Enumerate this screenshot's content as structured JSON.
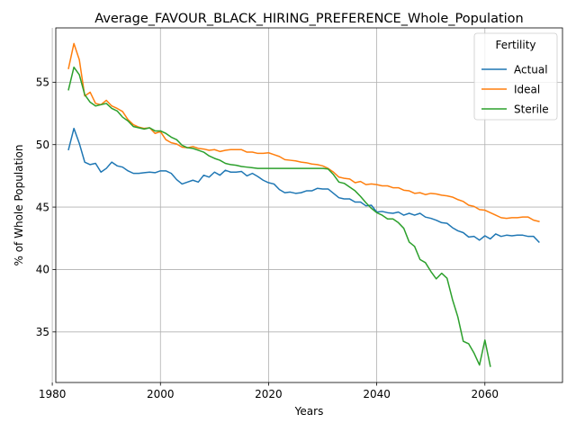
{
  "chart_data": {
    "type": "line",
    "title": "Average_FAVOUR_BLACK_HIRING_PREFERENCE_Whole_Population",
    "xlabel": "Years",
    "ylabel": "% of Whole Population",
    "xlim": [
      1980.65,
      2074.35
    ],
    "ylim": [
      30.95,
      59.35
    ],
    "xticks": [
      1980,
      2000,
      2020,
      2040,
      2060
    ],
    "yticks": [
      35,
      40,
      45,
      50,
      55
    ],
    "grid": true,
    "legend": {
      "title": "Fertility",
      "position": "top-right"
    },
    "series": [
      {
        "name": "Actual",
        "color": "#1f77b4",
        "x": [
          1983,
          1984,
          1985,
          1986,
          1987,
          1988,
          1989,
          1990,
          1991,
          1992,
          1993,
          1994,
          1995,
          1996,
          1997,
          1998,
          1999,
          2000,
          2001,
          2002,
          2003,
          2004,
          2005,
          2006,
          2007,
          2008,
          2009,
          2010,
          2011,
          2012,
          2013,
          2014,
          2015,
          2016,
          2017,
          2018,
          2019,
          2020,
          2021,
          2022,
          2023,
          2024,
          2025,
          2026,
          2027,
          2028,
          2029,
          2030,
          2031,
          2032,
          2033,
          2034,
          2035,
          2036,
          2037,
          2038,
          2039,
          2040,
          2041,
          2042,
          2043,
          2044,
          2045,
          2046,
          2047,
          2048,
          2049,
          2050,
          2051,
          2052,
          2053,
          2054,
          2055,
          2056,
          2057,
          2058,
          2059,
          2060,
          2061,
          2062,
          2063,
          2064,
          2065,
          2066,
          2067,
          2068,
          2069,
          2070
        ],
        "values": [
          49.6,
          51.3,
          50.1,
          48.6,
          48.4,
          48.5,
          47.8,
          48.1,
          48.6,
          48.3,
          48.2,
          47.9,
          47.7,
          47.7,
          47.75,
          47.8,
          47.75,
          47.9,
          47.9,
          47.7,
          47.2,
          46.85,
          47.0,
          47.15,
          47.0,
          47.55,
          47.4,
          47.8,
          47.55,
          47.95,
          47.8,
          47.8,
          47.85,
          47.5,
          47.7,
          47.45,
          47.15,
          46.95,
          46.85,
          46.4,
          46.15,
          46.2,
          46.1,
          46.15,
          46.3,
          46.3,
          46.5,
          46.45,
          46.45,
          46.1,
          45.75,
          45.65,
          45.65,
          45.4,
          45.4,
          45.1,
          45.15,
          44.6,
          44.65,
          44.55,
          44.5,
          44.6,
          44.35,
          44.5,
          44.35,
          44.5,
          44.2,
          44.1,
          43.95,
          43.75,
          43.7,
          43.35,
          43.1,
          42.95,
          42.6,
          42.65,
          42.35,
          42.7,
          42.45,
          42.85,
          42.65,
          42.75,
          42.7,
          42.75,
          42.75,
          42.65,
          42.65,
          42.2
        ]
      },
      {
        "name": "Ideal",
        "color": "#ff7f0e",
        "x": [
          1983,
          1984,
          1985,
          1986,
          1987,
          1988,
          1989,
          1990,
          1991,
          1992,
          1993,
          1994,
          1995,
          1996,
          1997,
          1998,
          1999,
          2000,
          2001,
          2002,
          2003,
          2004,
          2005,
          2006,
          2007,
          2008,
          2009,
          2010,
          2011,
          2012,
          2013,
          2014,
          2015,
          2016,
          2017,
          2018,
          2019,
          2020,
          2021,
          2022,
          2023,
          2024,
          2025,
          2026,
          2027,
          2028,
          2029,
          2030,
          2031,
          2032,
          2033,
          2034,
          2035,
          2036,
          2037,
          2038,
          2039,
          2040,
          2041,
          2042,
          2043,
          2044,
          2045,
          2046,
          2047,
          2048,
          2049,
          2050,
          2051,
          2052,
          2053,
          2054,
          2055,
          2056,
          2057,
          2058,
          2059,
          2060,
          2061,
          2062,
          2063,
          2064,
          2065,
          2066,
          2067,
          2068,
          2069,
          2070
        ],
        "values": [
          56.1,
          58.1,
          56.8,
          53.9,
          54.2,
          53.3,
          53.2,
          53.55,
          53.1,
          52.9,
          52.65,
          52.0,
          51.6,
          51.4,
          51.3,
          51.35,
          50.9,
          51.05,
          50.4,
          50.15,
          50.05,
          49.8,
          49.75,
          49.85,
          49.7,
          49.65,
          49.55,
          49.6,
          49.45,
          49.55,
          49.6,
          49.6,
          49.6,
          49.4,
          49.4,
          49.3,
          49.3,
          49.35,
          49.2,
          49.05,
          48.8,
          48.75,
          48.7,
          48.6,
          48.55,
          48.45,
          48.4,
          48.3,
          48.1,
          47.8,
          47.4,
          47.3,
          47.25,
          46.95,
          47.05,
          46.8,
          46.85,
          46.8,
          46.7,
          46.7,
          46.55,
          46.55,
          46.35,
          46.3,
          46.1,
          46.15,
          46.0,
          46.1,
          46.05,
          45.95,
          45.9,
          45.8,
          45.6,
          45.45,
          45.15,
          45.05,
          44.8,
          44.75,
          44.55,
          44.35,
          44.15,
          44.1,
          44.15,
          44.15,
          44.2,
          44.2,
          43.95,
          43.85
        ]
      },
      {
        "name": "Sterile",
        "color": "#2ca02c",
        "x": [
          1983,
          1984,
          1985,
          1986,
          1987,
          1988,
          1989,
          1990,
          1991,
          1992,
          1993,
          1994,
          1995,
          1996,
          1997,
          1998,
          1999,
          2000,
          2001,
          2002,
          2003,
          2004,
          2005,
          2006,
          2007,
          2008,
          2009,
          2010,
          2011,
          2012,
          2013,
          2014,
          2015,
          2016,
          2017,
          2018,
          2019,
          2020,
          2021,
          2022,
          2023,
          2024,
          2025,
          2026,
          2027,
          2028,
          2029,
          2030,
          2031,
          2032,
          2033,
          2034,
          2035,
          2036,
          2037,
          2038,
          2039,
          2040,
          2041,
          2042,
          2043,
          2044,
          2045,
          2046,
          2047,
          2048,
          2049,
          2050,
          2051,
          2052,
          2053,
          2054,
          2055,
          2056,
          2057,
          2058,
          2059,
          2060,
          2061,
          2062
        ],
        "values": [
          54.4,
          56.2,
          55.6,
          54.0,
          53.4,
          53.1,
          53.2,
          53.3,
          52.9,
          52.7,
          52.2,
          51.9,
          51.45,
          51.35,
          51.25,
          51.35,
          51.1,
          51.1,
          50.9,
          50.6,
          50.4,
          49.95,
          49.75,
          49.7,
          49.55,
          49.4,
          49.1,
          48.9,
          48.75,
          48.5,
          48.4,
          48.35,
          48.25,
          48.2,
          48.15,
          48.1,
          48.1,
          48.1,
          48.1,
          48.1,
          48.1,
          48.1,
          48.1,
          48.1,
          48.1,
          48.1,
          48.1,
          48.1,
          48.05,
          47.6,
          47.0,
          46.9,
          46.6,
          46.3,
          45.85,
          45.35,
          44.9,
          44.55,
          44.35,
          44.05,
          44.05,
          43.75,
          43.3,
          42.2,
          41.85,
          40.8,
          40.55,
          39.85,
          39.25,
          39.7,
          39.3,
          37.6,
          36.2,
          34.25,
          34.05,
          33.3,
          32.35,
          34.35,
          32.25,
          null
        ]
      }
    ]
  }
}
